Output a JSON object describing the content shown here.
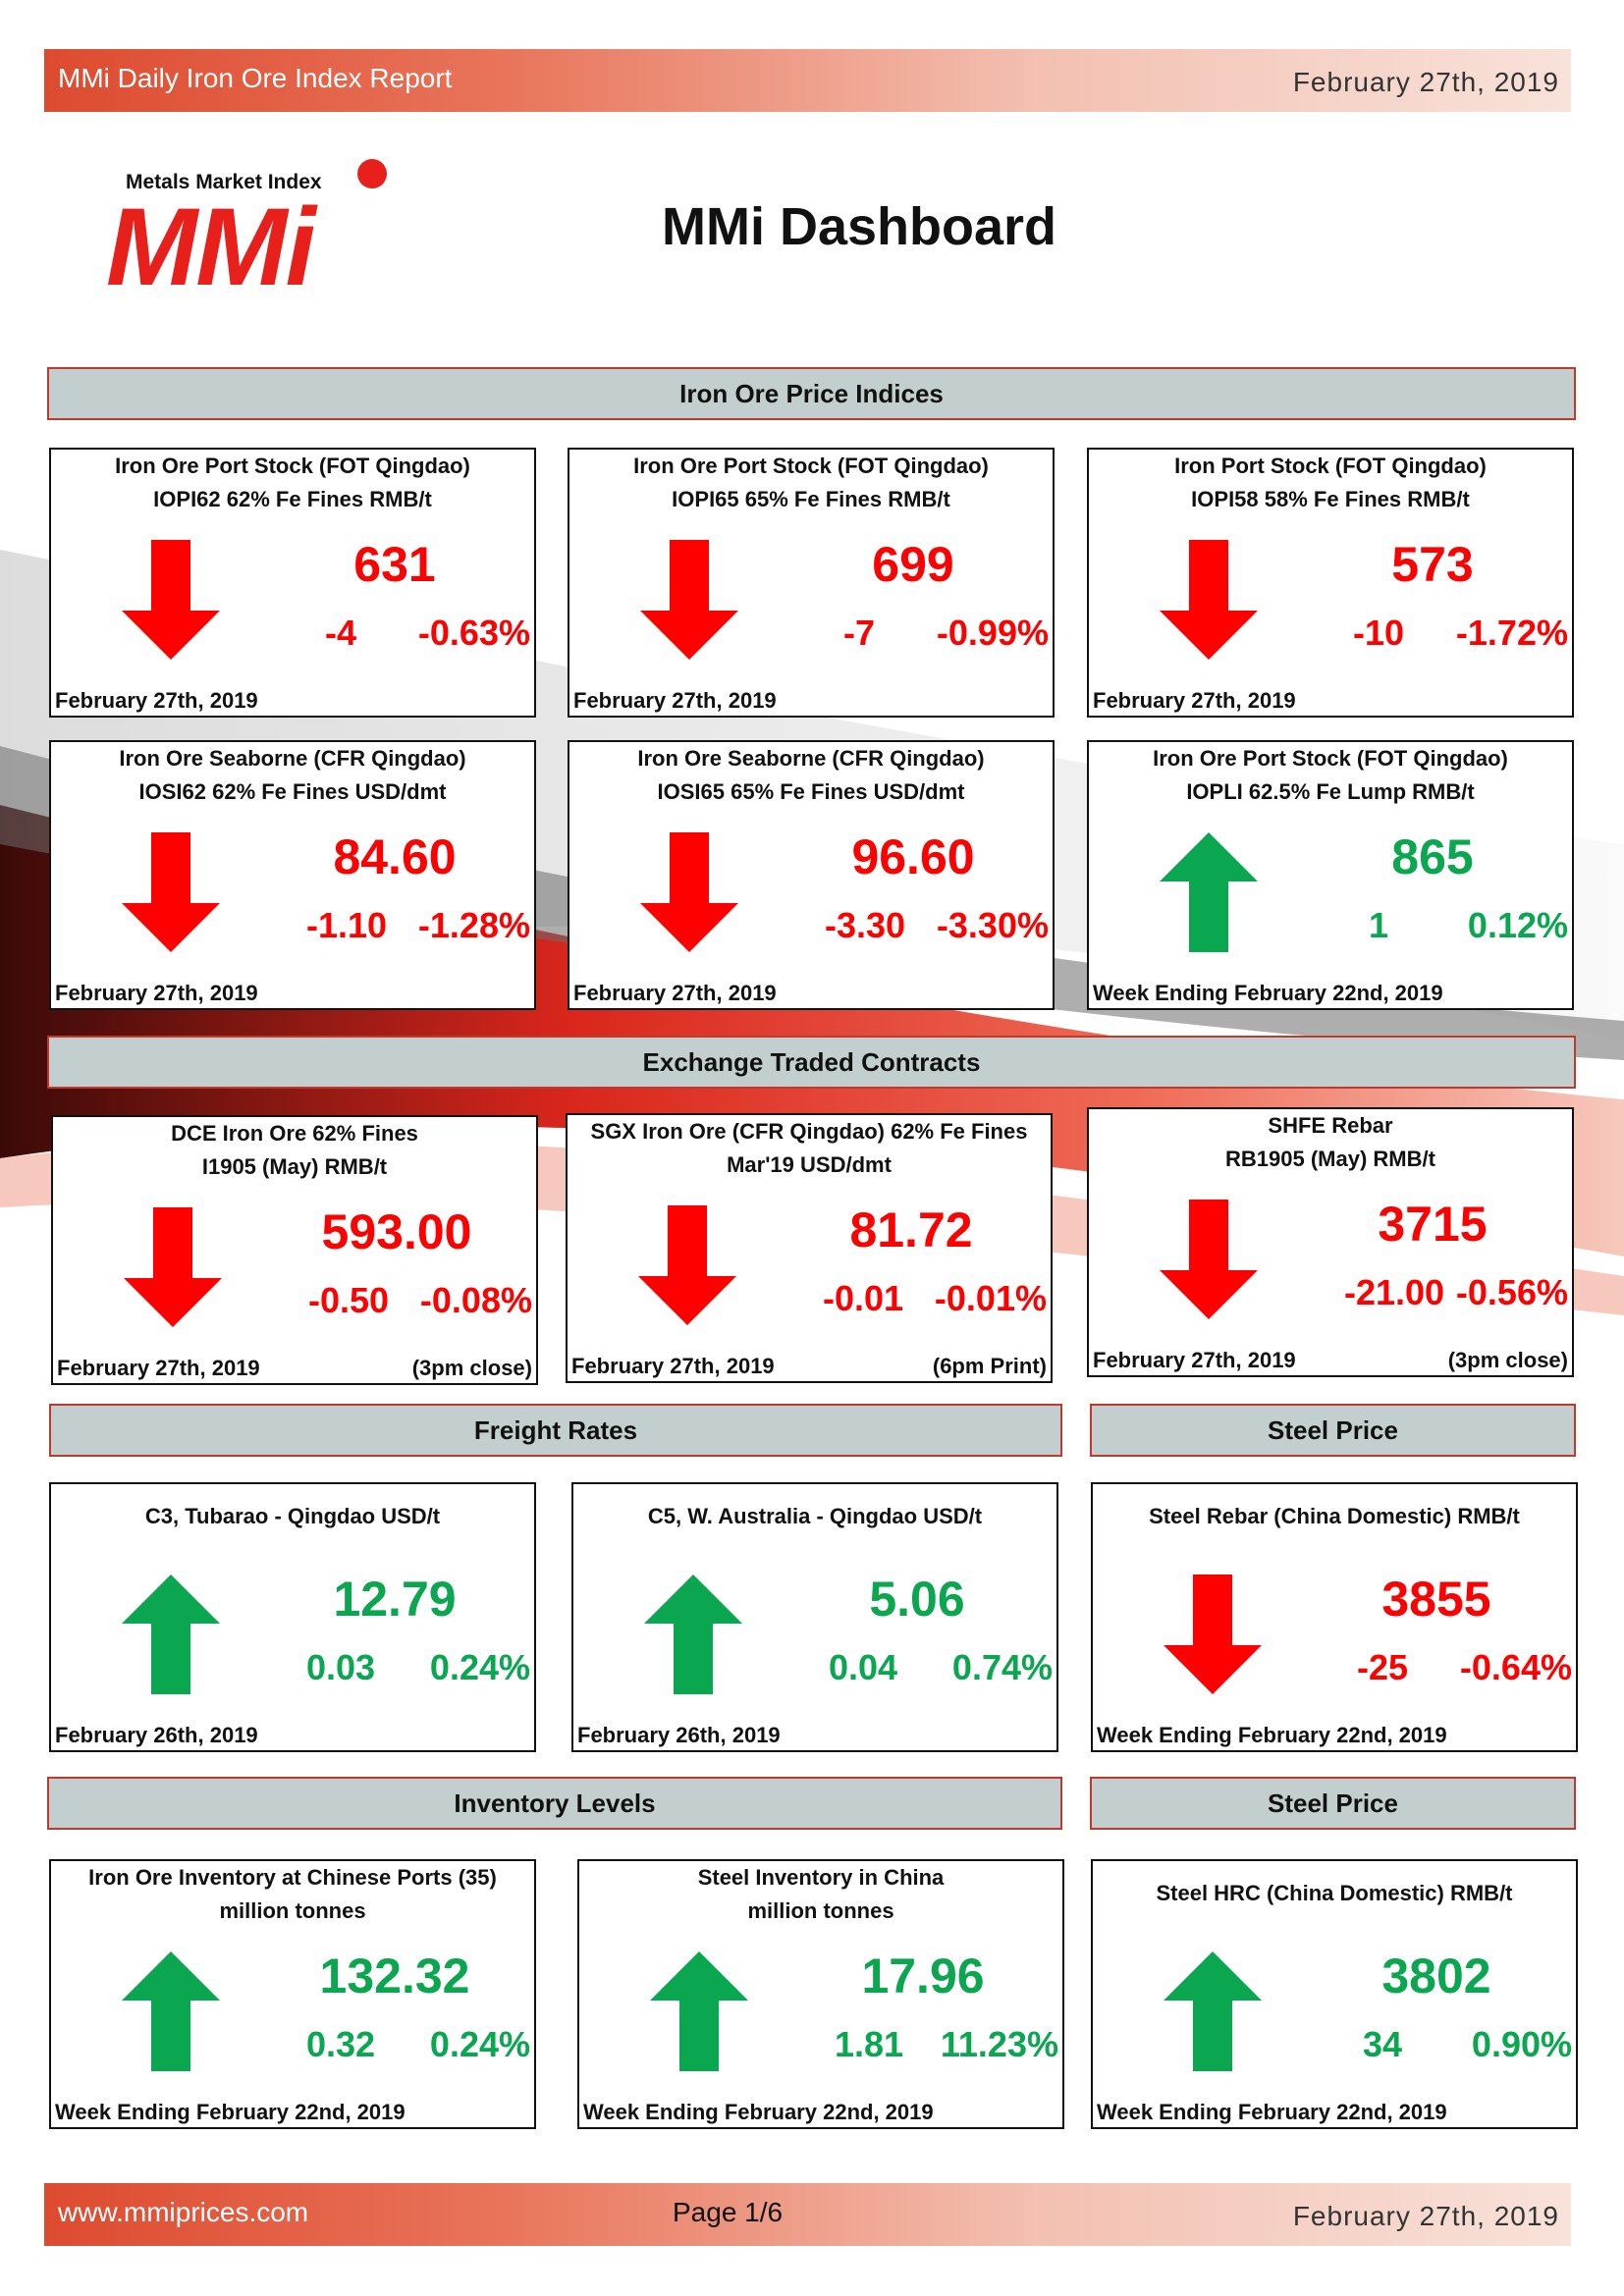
{
  "header": {
    "title": "MMi Daily Iron Ore Index Report",
    "date": "February 27th, 2019"
  },
  "logo": {
    "tagline": "Metals Market Index",
    "mark": "MMi"
  },
  "dashboard_title": "MMi Dashboard",
  "sections": {
    "iron_ore_price_indices": "Iron Ore Price Indices",
    "exchange_traded_contracts": "Exchange Traded Contracts",
    "freight_rates": "Freight Rates",
    "steel_price_1": "Steel Price",
    "inventory_levels": "Inventory Levels",
    "steel_price_2": "Steel Price"
  },
  "colors": {
    "down": "#ff0000",
    "up": "#0aa650",
    "band_start": "#dd4b2f",
    "section_bg": "#c3cfce"
  },
  "cards": [
    {
      "line1": "Iron Ore Port Stock (FOT Qingdao)",
      "line2": "IOPI62 62% Fe Fines RMB/t",
      "value": "631",
      "change": "-4",
      "pct": "-0.63%",
      "date": "February 27th, 2019",
      "note": "",
      "direction": "down",
      "icon": "down-arrow-icon"
    },
    {
      "line1": "Iron Ore Port Stock (FOT Qingdao)",
      "line2": "IOPI65 65% Fe Fines RMB/t",
      "value": "699",
      "change": "-7",
      "pct": "-0.99%",
      "date": "February 27th, 2019",
      "note": "",
      "direction": "down",
      "icon": "down-arrow-icon"
    },
    {
      "line1": "Iron Port Stock (FOT Qingdao)",
      "line2": "IOPI58 58% Fe Fines RMB/t",
      "value": "573",
      "change": "-10",
      "pct": "-1.72%",
      "date": "February 27th, 2019",
      "note": "",
      "direction": "down",
      "icon": "down-arrow-icon"
    },
    {
      "line1": "Iron Ore Seaborne (CFR Qingdao)",
      "line2": "IOSI62 62% Fe Fines USD/dmt",
      "value": "84.60",
      "change": "-1.10",
      "pct": "-1.28%",
      "date": "February 27th, 2019",
      "note": "",
      "direction": "down",
      "icon": "down-arrow-icon"
    },
    {
      "line1": "Iron Ore Seaborne (CFR Qingdao)",
      "line2": "IOSI65 65% Fe Fines USD/dmt",
      "value": "96.60",
      "change": "-3.30",
      "pct": "-3.30%",
      "date": "February 27th, 2019",
      "note": "",
      "direction": "down",
      "icon": "down-arrow-icon"
    },
    {
      "line1": "Iron Ore Port Stock (FOT Qingdao)",
      "line2": "IOPLI 62.5% Fe Lump RMB/t",
      "value": "865",
      "change": "1",
      "pct": "0.12%",
      "date": "Week Ending February 22nd, 2019",
      "note": "",
      "direction": "up",
      "icon": "up-arrow-icon"
    },
    {
      "line1": "DCE Iron Ore 62% Fines",
      "line2": "I1905 (May) RMB/t",
      "value": "593.00",
      "change": "-0.50",
      "pct": "-0.08%",
      "date": "February 27th, 2019",
      "note": "(3pm close)",
      "direction": "down",
      "icon": "down-arrow-icon"
    },
    {
      "line1": "SGX Iron Ore (CFR Qingdao) 62% Fe Fines",
      "line2": "Mar'19 USD/dmt",
      "value": "81.72",
      "change": "-0.01",
      "pct": "-0.01%",
      "date": "February 27th, 2019",
      "note": "(6pm Print)",
      "direction": "down",
      "icon": "down-arrow-icon"
    },
    {
      "line1": "SHFE Rebar",
      "line2": "RB1905 (May) RMB/t",
      "value": "3715",
      "change": "-21.00",
      "pct": "-0.56%",
      "date": "February 27th, 2019",
      "note": "(3pm close)",
      "direction": "down",
      "icon": "down-arrow-icon"
    },
    {
      "line1": "C3, Tubarao - Qingdao USD/t",
      "line2": "",
      "value": "12.79",
      "change": "0.03",
      "pct": "0.24%",
      "date": "February 26th, 2019",
      "note": "",
      "direction": "up",
      "icon": "up-arrow-icon"
    },
    {
      "line1": "C5, W. Australia - Qingdao USD/t",
      "line2": "",
      "value": "5.06",
      "change": "0.04",
      "pct": "0.74%",
      "date": "February 26th, 2019",
      "note": "",
      "direction": "up",
      "icon": "up-arrow-icon"
    },
    {
      "line1": "Steel Rebar (China Domestic) RMB/t",
      "line2": "",
      "value": "3855",
      "change": "-25",
      "pct": "-0.64%",
      "date": "Week Ending February 22nd, 2019",
      "note": "",
      "direction": "down",
      "icon": "down-arrow-icon"
    },
    {
      "line1": "Iron Ore Inventory at Chinese Ports (35)",
      "line2": "million tonnes",
      "value": "132.32",
      "change": "0.32",
      "pct": "0.24%",
      "date": "Week Ending February 22nd, 2019",
      "note": "",
      "direction": "up",
      "icon": "up-arrow-icon"
    },
    {
      "line1": "Steel Inventory in China",
      "line2": "million tonnes",
      "value": "17.96",
      "change": "1.81",
      "pct": "11.23%",
      "date": "Week Ending February 22nd, 2019",
      "note": "",
      "direction": "up",
      "icon": "up-arrow-icon"
    },
    {
      "line1": "Steel HRC (China Domestic) RMB/t",
      "line2": "",
      "value": "3802",
      "change": "34",
      "pct": "0.90%",
      "date": "Week Ending February 22nd, 2019",
      "note": "",
      "direction": "up",
      "icon": "up-arrow-icon"
    }
  ],
  "footer": {
    "url": "www.mmiprices.com",
    "page": "Page 1/6",
    "date": "February 27th, 2019"
  }
}
